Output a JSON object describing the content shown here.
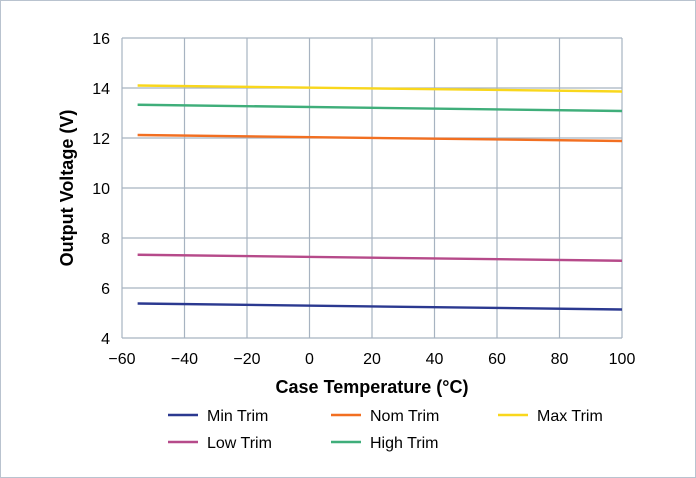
{
  "chart_data": {
    "type": "line",
    "title": "",
    "xlabel": "Case Temperature (°C)",
    "ylabel": "Output Voltage (V)",
    "xlim": [
      -60,
      100
    ],
    "ylim": [
      4,
      16
    ],
    "xticks": [
      "−60",
      "−40",
      "−20",
      "0",
      "20",
      "40",
      "60",
      "80",
      "100"
    ],
    "yticks": [
      "4",
      "6",
      "8",
      "10",
      "12",
      "14",
      "16"
    ],
    "grid": true,
    "legend_position": "bottom",
    "series": [
      {
        "name": "Min Trim",
        "color": "#2b3990",
        "x": [
          -55,
          100
        ],
        "y": [
          5.38,
          5.14
        ]
      },
      {
        "name": "Nom Trim",
        "color": "#f26f21",
        "x": [
          -55,
          100
        ],
        "y": [
          12.12,
          11.88
        ]
      },
      {
        "name": "Max Trim",
        "color": "#f9d71c",
        "x": [
          -55,
          100
        ],
        "y": [
          14.1,
          13.86
        ]
      },
      {
        "name": "Low Trim",
        "color": "#b64a8a",
        "x": [
          -55,
          100
        ],
        "y": [
          7.33,
          7.09
        ]
      },
      {
        "name": "High Trim",
        "color": "#3fae7a",
        "x": [
          -55,
          100
        ],
        "y": [
          13.33,
          13.08
        ]
      }
    ]
  }
}
